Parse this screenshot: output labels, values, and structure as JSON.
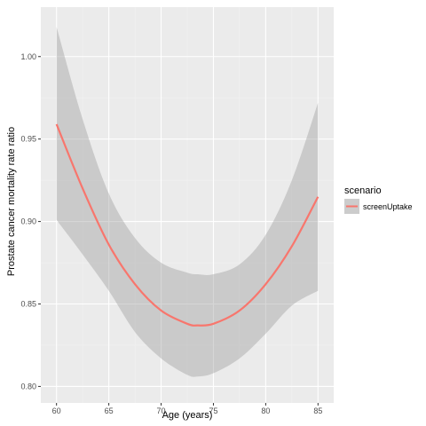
{
  "chart_data": {
    "type": "line",
    "xlabel": "Age (years)",
    "ylabel": "Prostate cancer mortality rate ratio",
    "xlim": [
      58.5,
      86.5
    ],
    "ylim": [
      0.79,
      1.03
    ],
    "x_ticks": [
      60,
      65,
      70,
      75,
      80,
      85
    ],
    "x_tick_labels": [
      "60",
      "65",
      "70",
      "75",
      "80",
      "85"
    ],
    "y_ticks": [
      0.8,
      0.85,
      0.9,
      0.95,
      1.0
    ],
    "y_tick_labels": [
      "0.80",
      "0.85",
      "0.90",
      "0.95",
      "1.00"
    ],
    "grid": true,
    "legend": {
      "title": "scenario",
      "position": "right"
    },
    "series": [
      {
        "name": "screenUptake",
        "color": "#F8766D",
        "x": [
          60,
          62.5,
          65,
          67.5,
          70,
          72.5,
          73.5,
          75,
          77.5,
          80,
          82.5,
          85
        ],
        "y": [
          0.959,
          0.92,
          0.886,
          0.862,
          0.846,
          0.838,
          0.837,
          0.838,
          0.846,
          0.862,
          0.885,
          0.915
        ],
        "lower": [
          0.901,
          0.88,
          0.858,
          0.833,
          0.817,
          0.807,
          0.806,
          0.808,
          0.817,
          0.832,
          0.849,
          0.858
        ],
        "upper": [
          1.018,
          0.962,
          0.917,
          0.89,
          0.875,
          0.869,
          0.868,
          0.868,
          0.874,
          0.892,
          0.925,
          0.972
        ]
      }
    ]
  }
}
